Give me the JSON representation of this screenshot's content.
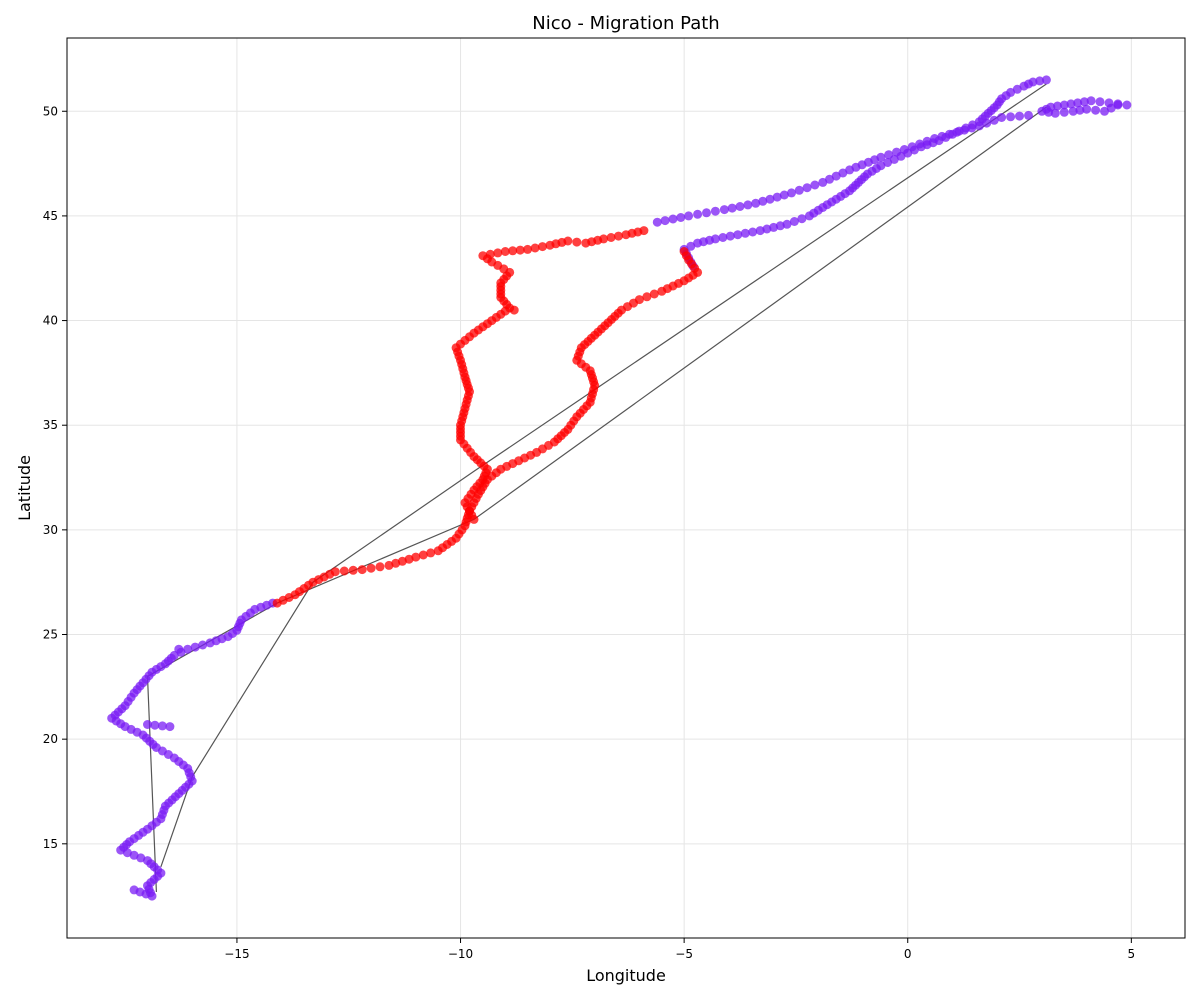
{
  "chart_data": {
    "type": "scatter",
    "title": "Nico - Migration Path",
    "xlabel": "Longitude",
    "ylabel": "Latitude",
    "xlim": [
      -18.8,
      6.2
    ],
    "ylim": [
      10.5,
      53.5
    ],
    "xticks": [
      -15,
      -10,
      -5,
      0,
      5
    ],
    "xtick_labels": [
      "−15",
      "−10",
      "−5",
      "0",
      "5"
    ],
    "yticks": [
      15,
      20,
      25,
      30,
      35,
      40,
      45,
      50
    ],
    "ytick_labels": [
      "15",
      "20",
      "25",
      "30",
      "35",
      "40",
      "45",
      "50"
    ],
    "grid": true,
    "legend": false,
    "colors": {
      "purple_series": "#7a1cf4",
      "red_series": "#ff0000",
      "path_line": "#555555",
      "dense_line": "#000000"
    },
    "series": [
      {
        "color": "purple",
        "points": [
          [
            3.1,
            51.5
          ],
          [
            2.8,
            51.4
          ],
          [
            2.6,
            51.2
          ],
          [
            2.3,
            50.9
          ],
          [
            2.1,
            50.6
          ],
          [
            2.0,
            50.3
          ],
          [
            1.8,
            49.9
          ],
          [
            1.6,
            49.5
          ],
          [
            1.3,
            49.2
          ],
          [
            1.0,
            48.9
          ],
          [
            0.7,
            48.6
          ],
          [
            0.3,
            48.3
          ],
          [
            0.0,
            48.0
          ],
          [
            -0.3,
            47.7
          ],
          [
            -0.6,
            47.4
          ],
          [
            -0.9,
            47.0
          ],
          [
            -1.1,
            46.6
          ],
          [
            -1.3,
            46.2
          ],
          [
            -1.6,
            45.8
          ],
          [
            -1.9,
            45.4
          ],
          [
            -2.2,
            45.0
          ],
          [
            -2.7,
            44.6
          ],
          [
            -3.3,
            44.3
          ],
          [
            -3.8,
            44.1
          ],
          [
            -4.3,
            43.9
          ],
          [
            -4.7,
            43.7
          ],
          [
            -5.0,
            43.4
          ],
          [
            -4.8,
            42.6
          ],
          [
            2.7,
            49.8
          ],
          [
            2.1,
            49.7
          ],
          [
            1.6,
            49.3
          ],
          [
            1.1,
            49.0
          ],
          [
            0.6,
            48.7
          ],
          [
            0.1,
            48.3
          ],
          [
            -0.6,
            47.8
          ],
          [
            -1.3,
            47.2
          ],
          [
            -1.9,
            46.6
          ],
          [
            -2.6,
            46.1
          ],
          [
            -3.4,
            45.6
          ],
          [
            -4.1,
            45.3
          ],
          [
            -4.9,
            45.0
          ],
          [
            -5.6,
            44.7
          ],
          [
            4.9,
            50.3
          ],
          [
            4.5,
            50.4
          ],
          [
            4.1,
            50.5
          ],
          [
            3.8,
            50.4
          ],
          [
            3.5,
            50.3
          ],
          [
            3.2,
            50.2
          ],
          [
            3.0,
            50.0
          ],
          [
            3.3,
            49.9
          ],
          [
            3.7,
            50.0
          ],
          [
            4.0,
            50.1
          ],
          [
            4.4,
            50.0
          ],
          [
            4.7,
            50.3
          ],
          [
            -14.2,
            26.5
          ],
          [
            -14.6,
            26.2
          ],
          [
            -14.9,
            25.7
          ],
          [
            -15.0,
            25.2
          ],
          [
            -15.2,
            24.9
          ],
          [
            -15.6,
            24.6
          ],
          [
            -16.1,
            24.3
          ],
          [
            -16.4,
            24.0
          ],
          [
            -16.6,
            23.6
          ],
          [
            -16.9,
            23.2
          ],
          [
            -17.1,
            22.7
          ],
          [
            -17.3,
            22.2
          ],
          [
            -17.5,
            21.6
          ],
          [
            -17.8,
            21.0
          ],
          [
            -17.5,
            20.6
          ],
          [
            -17.1,
            20.2
          ],
          [
            -16.8,
            19.6
          ],
          [
            -16.4,
            19.1
          ],
          [
            -16.1,
            18.6
          ],
          [
            -16.0,
            18.0
          ],
          [
            -16.3,
            17.4
          ],
          [
            -16.6,
            16.8
          ],
          [
            -16.7,
            16.2
          ],
          [
            -17.0,
            15.7
          ],
          [
            -17.4,
            15.1
          ],
          [
            -17.6,
            14.7
          ],
          [
            -17.0,
            14.2
          ],
          [
            -16.7,
            13.6
          ],
          [
            -17.0,
            13.0
          ],
          [
            -16.9,
            12.5
          ],
          [
            -17.3,
            12.8
          ],
          [
            -16.5,
            20.6
          ],
          [
            -17.0,
            20.7
          ],
          [
            -16.3,
            24.3
          ]
        ]
      },
      {
        "color": "red",
        "points": [
          [
            -14.1,
            26.5
          ],
          [
            -13.7,
            26.9
          ],
          [
            -13.3,
            27.5
          ],
          [
            -12.8,
            28.0
          ],
          [
            -12.2,
            28.1
          ],
          [
            -11.6,
            28.3
          ],
          [
            -11.0,
            28.7
          ],
          [
            -10.5,
            29.0
          ],
          [
            -10.1,
            29.6
          ],
          [
            -9.9,
            30.2
          ],
          [
            -9.8,
            30.9
          ],
          [
            -9.6,
            31.7
          ],
          [
            -9.4,
            32.4
          ],
          [
            -9.1,
            32.9
          ],
          [
            -8.7,
            33.3
          ],
          [
            -8.3,
            33.7
          ],
          [
            -7.9,
            34.2
          ],
          [
            -7.6,
            34.8
          ],
          [
            -7.4,
            35.4
          ],
          [
            -7.1,
            36.1
          ],
          [
            -7.0,
            36.9
          ],
          [
            -7.1,
            37.6
          ],
          [
            -7.4,
            38.1
          ],
          [
            -7.3,
            38.7
          ],
          [
            -7.0,
            39.3
          ],
          [
            -6.7,
            39.9
          ],
          [
            -6.4,
            40.5
          ],
          [
            -6.0,
            41.0
          ],
          [
            -5.5,
            41.4
          ],
          [
            -5.0,
            41.9
          ],
          [
            -4.7,
            42.3
          ],
          [
            -4.9,
            42.9
          ],
          [
            -5.0,
            43.3
          ],
          [
            -9.7,
            30.5
          ],
          [
            -9.9,
            31.3
          ],
          [
            -9.7,
            31.9
          ],
          [
            -9.5,
            32.4
          ],
          [
            -9.4,
            32.9
          ],
          [
            -9.7,
            33.5
          ],
          [
            -10.0,
            34.3
          ],
          [
            -10.0,
            35.0
          ],
          [
            -9.9,
            35.8
          ],
          [
            -9.8,
            36.6
          ],
          [
            -9.9,
            37.3
          ],
          [
            -10.0,
            38.1
          ],
          [
            -10.1,
            38.7
          ],
          [
            -9.7,
            39.4
          ],
          [
            -9.3,
            40.0
          ],
          [
            -8.9,
            40.6
          ],
          [
            -9.1,
            41.1
          ],
          [
            -9.1,
            41.8
          ],
          [
            -8.9,
            42.3
          ],
          [
            -9.3,
            42.8
          ],
          [
            -9.5,
            43.1
          ],
          [
            -9.0,
            43.3
          ],
          [
            -8.5,
            43.4
          ],
          [
            -8.0,
            43.6
          ],
          [
            -7.6,
            43.8
          ],
          [
            -7.2,
            43.7
          ],
          [
            -6.8,
            43.9
          ],
          [
            -6.3,
            44.1
          ],
          [
            -5.9,
            44.3
          ],
          [
            -8.8,
            40.5
          ]
        ]
      }
    ],
    "path_lines": [
      [
        [
          3.1,
          51.3
        ],
        [
          -9.7,
          32.8
        ],
        [
          -13.3,
          27.5
        ],
        [
          -16.0,
          18.2
        ],
        [
          -16.7,
          13.9
        ]
      ],
      [
        [
          3.1,
          50.2
        ],
        [
          -9.7,
          30.5
        ],
        [
          -14.1,
          26.5
        ],
        [
          -17.0,
          23.0
        ],
        [
          -16.8,
          12.7
        ]
      ]
    ]
  }
}
